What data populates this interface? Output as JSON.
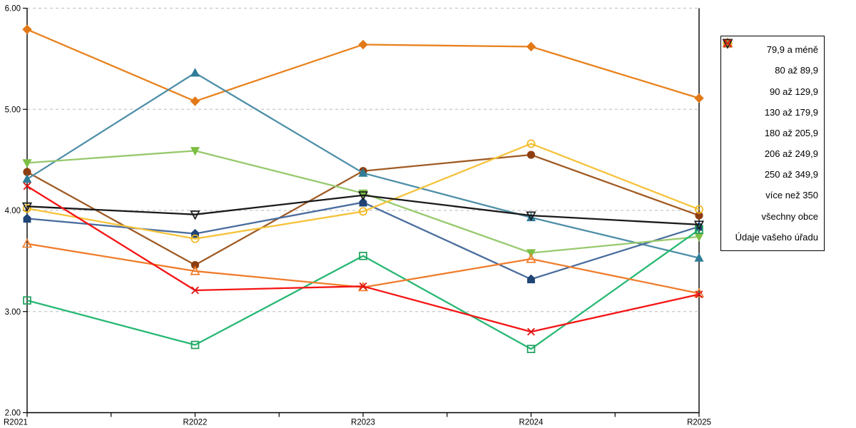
{
  "chart_data": {
    "type": "line",
    "title": "",
    "xlabel": "",
    "ylabel": "",
    "categories": [
      "R2021",
      "R2022",
      "R2023",
      "R2024",
      "R2025"
    ],
    "y_ticks": [
      "6.00",
      "5.00",
      "4.00",
      "3.00",
      "2.00"
    ],
    "y_tick_values": [
      6.0,
      5.0,
      4.0,
      3.0,
      2.0
    ],
    "ylim": [
      2.0,
      6.0
    ],
    "grid": "horizontal dashed gridlines at 3.00, 4.00, 5.00, 6.00",
    "legend_position": "right",
    "series": [
      {
        "name": "79,9 a méně",
        "marker": "diamond",
        "marker_style": "filled",
        "color": "#E27917",
        "line_color": "#E8821E",
        "values": [
          5.79,
          5.08,
          5.64,
          5.62,
          5.11
        ]
      },
      {
        "name": "80 až 89,9",
        "marker": "circle",
        "marker_style": "filled",
        "color": "#8E3E10",
        "line_color": "#A05B24",
        "values": [
          4.38,
          3.46,
          4.39,
          4.55,
          3.95
        ]
      },
      {
        "name": "90 až 129,9",
        "marker": "triangle-up",
        "marker_style": "filled",
        "color": "#2F7D98",
        "line_color": "#4E8FA8",
        "values": [
          4.31,
          5.36,
          4.37,
          3.93,
          3.53
        ]
      },
      {
        "name": "130 až 179,9",
        "marker": "pentagon",
        "marker_style": "filled",
        "color": "#1F4475",
        "line_color": "#4A6D9E",
        "values": [
          3.92,
          3.77,
          4.08,
          3.32,
          3.84
        ]
      },
      {
        "name": "180 až 205,9",
        "marker": "triangle-down",
        "marker_style": "filled",
        "color": "#7DBE44",
        "line_color": "#97C96D",
        "values": [
          4.47,
          4.59,
          4.17,
          3.58,
          3.74
        ]
      },
      {
        "name": "206 až 249,9",
        "marker": "square",
        "marker_style": "open",
        "color": "#1CA05C",
        "line_color": "#27B873",
        "values": [
          3.11,
          2.67,
          3.55,
          2.63,
          3.81
        ]
      },
      {
        "name": "250 až 349,9",
        "marker": "circle",
        "marker_style": "open",
        "color": "#F0B71E",
        "line_color": "#F5C33C",
        "values": [
          4.02,
          3.72,
          3.99,
          4.66,
          4.01
        ]
      },
      {
        "name": "více než 350",
        "marker": "triangle-up",
        "marker_style": "open",
        "color": "#EF7D2C",
        "line_color": "#EF7D2C",
        "values": [
          3.67,
          3.4,
          3.24,
          3.52,
          3.18
        ]
      },
      {
        "name": "všechny obce",
        "marker": "triangle-down",
        "marker_style": "open",
        "color": "#1A1A1A",
        "line_color": "#1A1A1A",
        "values": [
          4.04,
          3.96,
          4.15,
          3.95,
          3.86
        ]
      },
      {
        "name": "Údaje vašeho úřadu",
        "marker": "x",
        "marker_style": "open",
        "color": "#DC1414",
        "line_color": "#F41414",
        "values": [
          4.24,
          3.21,
          3.25,
          2.8,
          3.17
        ]
      }
    ]
  },
  "colors": {
    "background": "#FFFFFF",
    "axis": "#000000",
    "gridline": "#C6C6C6",
    "legend_border": "#000000",
    "tick_label": "#000000"
  }
}
